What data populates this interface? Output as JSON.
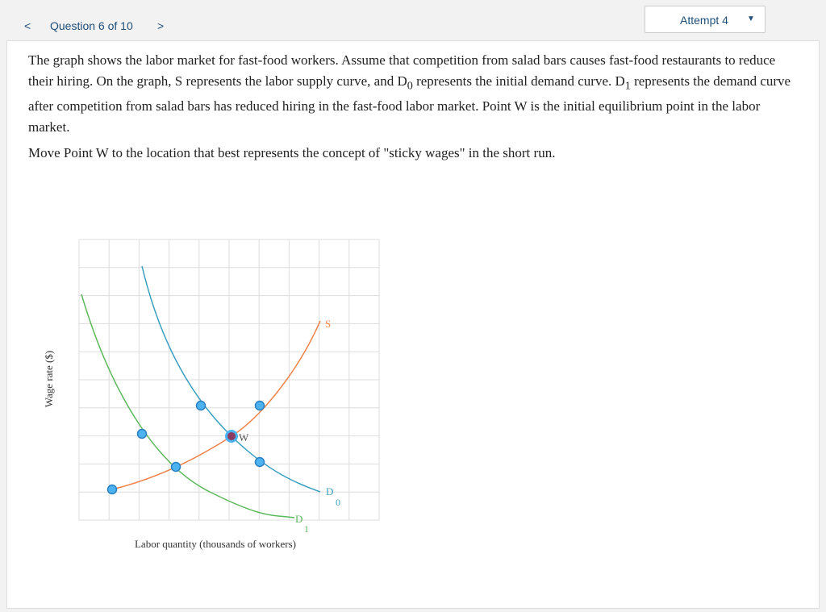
{
  "header": {
    "question": "Question 6 of 10",
    "attempt": "Attempt 4"
  },
  "question": {
    "paragraph_1": [
      "The graph shows the labor market for fast-food workers. Assume that competition from salad bars causes fast-food restaurants to reduce their hiring. On the graph, S represents the labor supply curve, and D",
      "0",
      " represents the initial demand curve. D",
      "1",
      " represents the demand curve after competition from salad bars has reduced hiring in the fast-food labor market. Point W is the initial equilibrium point in the labor market."
    ],
    "paragraph_2": "Move Point W to the location that best represents the concept of \"sticky wages\" in the short run."
  },
  "graph": {
    "y_axis_label": "Wage rate ($)",
    "x_axis_label": "Labor quantity (thousands of workers)",
    "supply_label": "S",
    "demand_0_label": [
      "D",
      "0"
    ],
    "demand_1_label": [
      "D",
      "1"
    ],
    "point_label": "W"
  }
}
